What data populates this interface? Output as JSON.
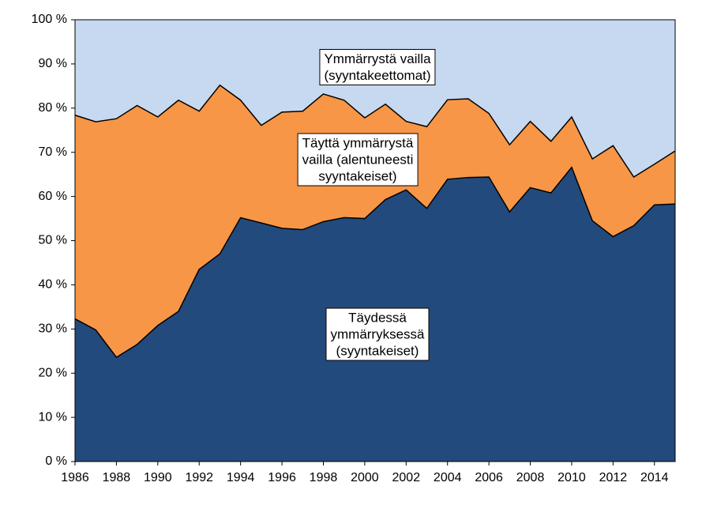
{
  "chart_data": {
    "type": "stacked_area",
    "x": [
      1986,
      1987,
      1988,
      1989,
      1990,
      1991,
      1992,
      1993,
      1994,
      1995,
      1996,
      1997,
      1998,
      1999,
      2000,
      2001,
      2002,
      2003,
      2004,
      2005,
      2006,
      2007,
      2008,
      2009,
      2010,
      2011,
      2012,
      2013,
      2014,
      2015
    ],
    "series": [
      {
        "name": "Täydessä\nymmärryksessä\n(syyntakeiset)",
        "color": "#234a7c",
        "values": [
          32.3,
          29.8,
          23.6,
          26.5,
          30.8,
          34,
          43.5,
          47,
          55.2,
          54,
          52.8,
          52.5,
          54.3,
          55.2,
          55,
          59.3,
          61.5,
          57.3,
          63.9,
          64.3,
          64.4,
          56.5,
          62,
          60.8,
          66.6,
          54.5,
          50.9,
          53.4,
          58.1,
          58.3
        ]
      },
      {
        "name": "Täyttä  ymmärrystä\nvailla  (alentuneesti\nsyyntakeiset)",
        "color": "#f79646",
        "values": [
          46.1,
          47.1,
          54,
          54.1,
          47.2,
          47.8,
          35.8,
          38.2,
          26.6,
          22.1,
          26.3,
          26.8,
          28.9,
          26.6,
          22.8,
          21.6,
          15.5,
          18.5,
          18,
          17.8,
          14.4,
          15.2,
          15,
          11.7,
          11.4,
          14,
          20.6,
          11,
          9.2,
          12
        ]
      },
      {
        "name": "Ymmärrystä  vailla\n(syyntakeettomat)",
        "color": "#c6d9f0",
        "values": [
          21.6,
          23.1,
          22.4,
          19.4,
          22,
          18.2,
          20.7,
          14.8,
          18.2,
          23.9,
          20.9,
          20.7,
          16.8,
          18.2,
          22.2,
          19.1,
          23,
          24.2,
          18.1,
          17.9,
          21.2,
          28.3,
          23,
          27.5,
          22,
          31.5,
          28.5,
          35.6,
          32.7,
          29.7
        ]
      }
    ],
    "xlim": [
      1986,
      2015
    ],
    "xticks": [
      1986,
      1988,
      1990,
      1992,
      1994,
      1996,
      1998,
      2000,
      2002,
      2004,
      2006,
      2008,
      2010,
      2012,
      2014
    ],
    "ylim": [
      0,
      100
    ],
    "yticks": [
      {
        "value": 0,
        "label": "0 %"
      },
      {
        "value": 10,
        "label": "10 %"
      },
      {
        "value": 20,
        "label": "20 %"
      },
      {
        "value": 30,
        "label": "30 %"
      },
      {
        "value": 40,
        "label": "40 %"
      },
      {
        "value": 50,
        "label": "50 %"
      },
      {
        "value": 60,
        "label": "60 %"
      },
      {
        "value": 70,
        "label": "70 %"
      },
      {
        "value": 80,
        "label": "80 %"
      },
      {
        "value": 90,
        "label": "90 %"
      },
      {
        "value": 100,
        "label": "100 %"
      }
    ]
  }
}
